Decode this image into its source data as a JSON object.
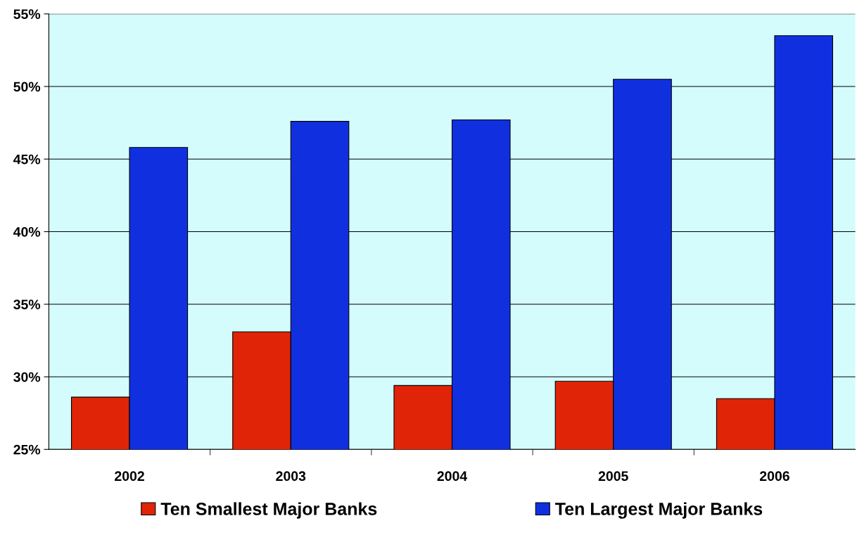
{
  "chart_data": {
    "type": "bar",
    "categories": [
      "2002",
      "2003",
      "2004",
      "2005",
      "2006"
    ],
    "series": [
      {
        "name": "Ten Smallest Major Banks",
        "color": "#e02408",
        "values": [
          28.6,
          33.1,
          29.4,
          29.7,
          28.5
        ]
      },
      {
        "name": "Ten Largest Major Banks",
        "color": "#1030e0",
        "values": [
          45.8,
          47.6,
          47.7,
          50.5,
          53.5
        ]
      }
    ],
    "ylim": [
      25,
      55
    ],
    "yticks": [
      {
        "value": 25,
        "label": "25%"
      },
      {
        "value": 30,
        "label": "30%"
      },
      {
        "value": 35,
        "label": "35%"
      },
      {
        "value": 40,
        "label": "40%"
      },
      {
        "value": 45,
        "label": "45%"
      },
      {
        "value": 50,
        "label": "50%"
      },
      {
        "value": 55,
        "label": "55%"
      }
    ],
    "grid": "y",
    "legend": "bottom"
  }
}
